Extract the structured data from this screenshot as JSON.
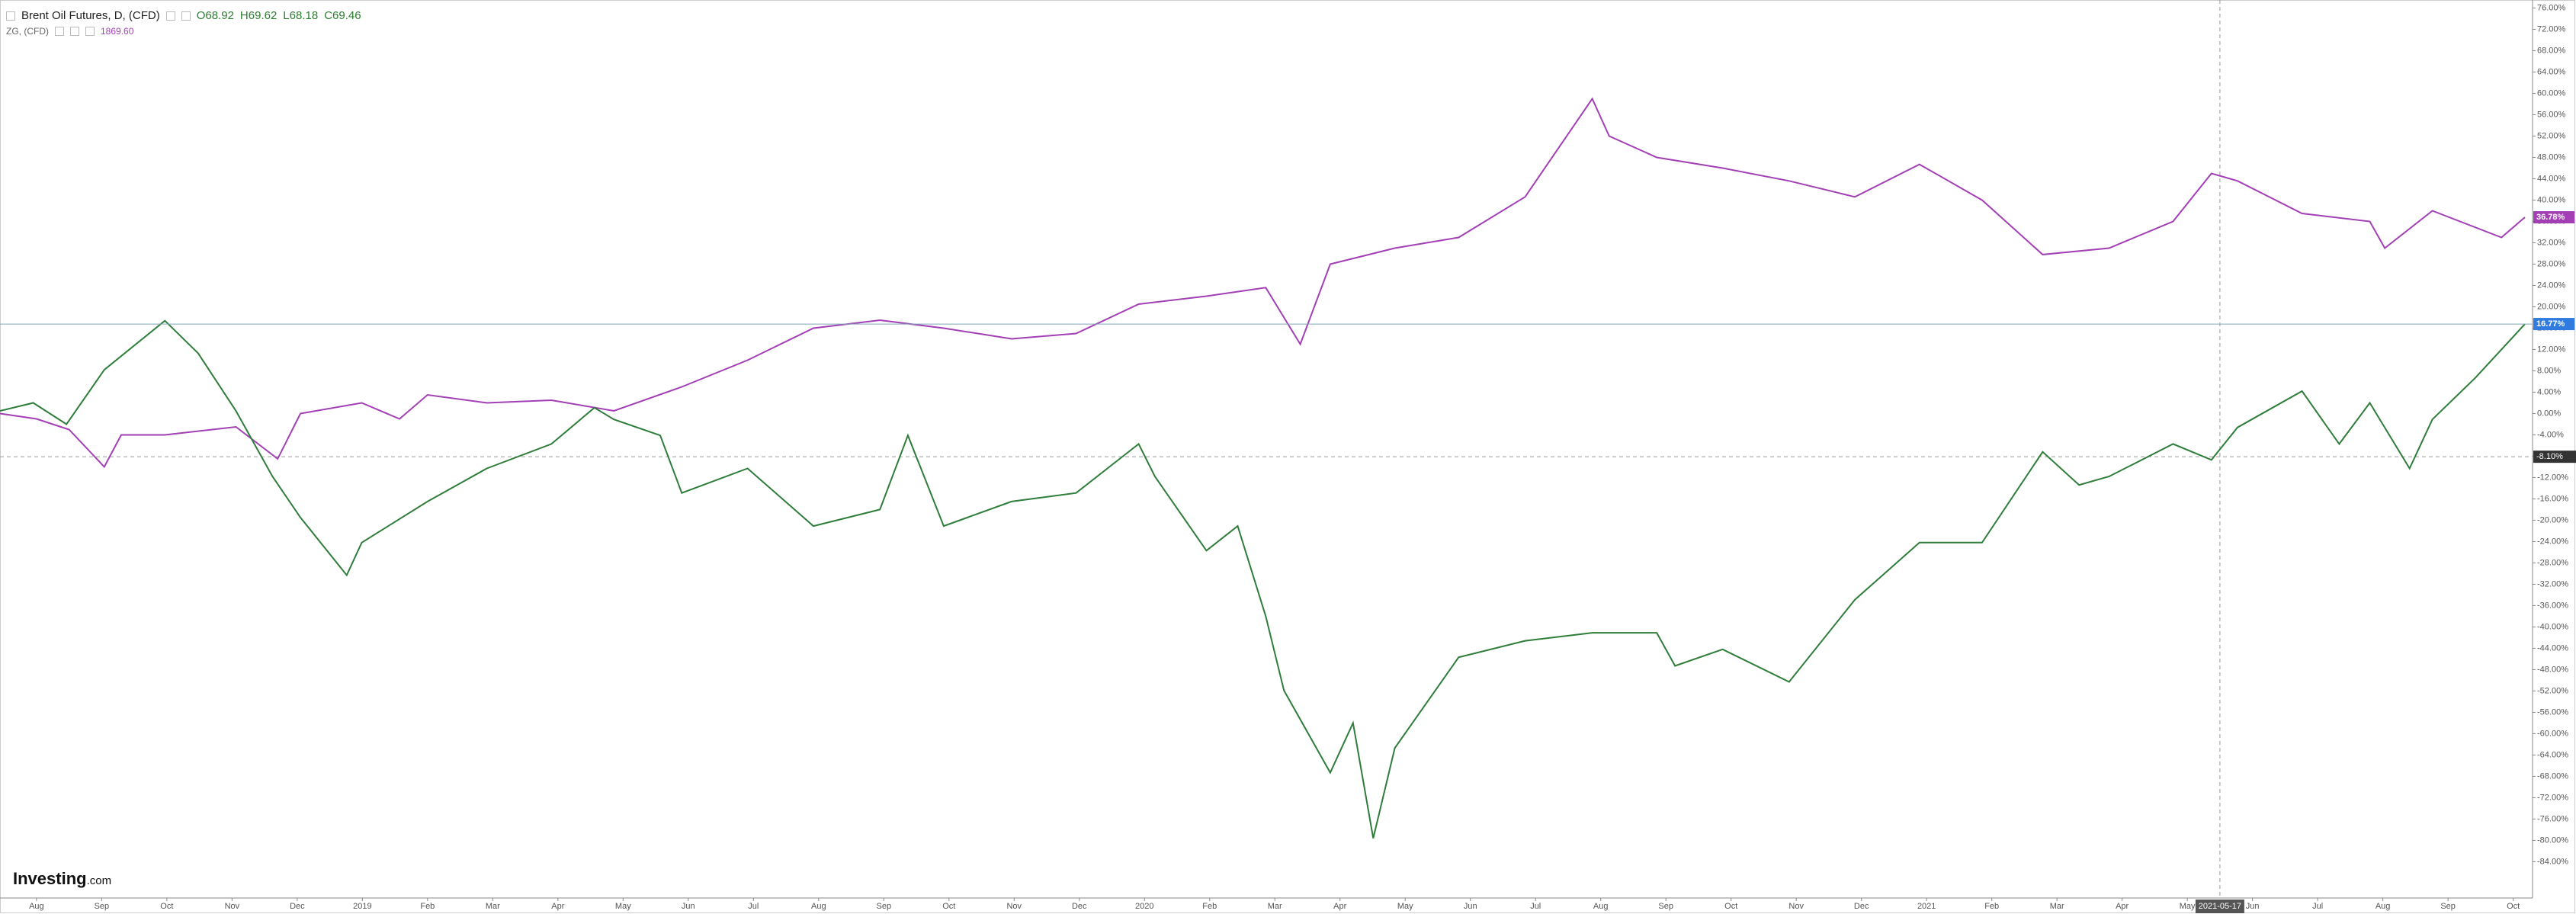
{
  "header": {
    "symbol": "Brent Oil Futures, D, (CFD)",
    "open": "O68.92",
    "high": "H69.62",
    "low": "L68.18",
    "close": "C69.46",
    "compare_symbol": "ZG, (CFD)",
    "compare_price": "1869.60"
  },
  "logo": {
    "brand": "Investing",
    "suffix": ".com"
  },
  "chart_data": {
    "type": "line",
    "xlim": [
      -0.56,
      38.25
    ],
    "ylim": [
      -90.8,
      77.5
    ],
    "xticks": [
      {
        "value": 0,
        "label": "Aug"
      },
      {
        "value": 1,
        "label": "Sep"
      },
      {
        "value": 2,
        "label": "Oct"
      },
      {
        "value": 3,
        "label": "Nov"
      },
      {
        "value": 4,
        "label": "Dec"
      },
      {
        "value": 5,
        "label": "2019"
      },
      {
        "value": 6,
        "label": "Feb"
      },
      {
        "value": 7,
        "label": "Mar"
      },
      {
        "value": 8,
        "label": "Apr"
      },
      {
        "value": 9,
        "label": "May"
      },
      {
        "value": 10,
        "label": "Jun"
      },
      {
        "value": 11,
        "label": "Jul"
      },
      {
        "value": 12,
        "label": "Aug"
      },
      {
        "value": 13,
        "label": "Sep"
      },
      {
        "value": 14,
        "label": "Oct"
      },
      {
        "value": 15,
        "label": "Nov"
      },
      {
        "value": 16,
        "label": "Dec"
      },
      {
        "value": 17,
        "label": "2020"
      },
      {
        "value": 18,
        "label": "Feb"
      },
      {
        "value": 19,
        "label": "Mar"
      },
      {
        "value": 20,
        "label": "Apr"
      },
      {
        "value": 21,
        "label": "May"
      },
      {
        "value": 22,
        "label": "Jun"
      },
      {
        "value": 23,
        "label": "Jul"
      },
      {
        "value": 24,
        "label": "Aug"
      },
      {
        "value": 25,
        "label": "Sep"
      },
      {
        "value": 26,
        "label": "Oct"
      },
      {
        "value": 27,
        "label": "Nov"
      },
      {
        "value": 28,
        "label": "Dec"
      },
      {
        "value": 29,
        "label": "2021"
      },
      {
        "value": 30,
        "label": "Feb"
      },
      {
        "value": 31,
        "label": "Mar"
      },
      {
        "value": 32,
        "label": "Apr"
      },
      {
        "value": 33,
        "label": "May"
      },
      {
        "value": 34,
        "label": "Jun"
      },
      {
        "value": 35,
        "label": "Jul"
      },
      {
        "value": 36,
        "label": "Aug"
      },
      {
        "value": 37,
        "label": "Sep"
      },
      {
        "value": 38,
        "label": "Oct"
      }
    ],
    "yticks": [
      {
        "value": 76,
        "label": "76.00%"
      },
      {
        "value": 72,
        "label": "72.00%"
      },
      {
        "value": 68,
        "label": "68.00%"
      },
      {
        "value": 64,
        "label": "64.00%"
      },
      {
        "value": 60,
        "label": "60.00%"
      },
      {
        "value": 56,
        "label": "56.00%"
      },
      {
        "value": 52,
        "label": "52.00%"
      },
      {
        "value": 48,
        "label": "48.00%"
      },
      {
        "value": 44,
        "label": "44.00%"
      },
      {
        "value": 40,
        "label": "40.00%"
      },
      {
        "value": 36,
        "label": "36.00%"
      },
      {
        "value": 32,
        "label": "32.00%"
      },
      {
        "value": 28,
        "label": "28.00%"
      },
      {
        "value": 24,
        "label": "24.00%"
      },
      {
        "value": 20,
        "label": "20.00%"
      },
      {
        "value": 16,
        "label": "16.00%"
      },
      {
        "value": 12,
        "label": "12.00%"
      },
      {
        "value": 8,
        "label": "8.00%"
      },
      {
        "value": 4,
        "label": "4.00%"
      },
      {
        "value": 0,
        "label": "0.00%"
      },
      {
        "value": -4,
        "label": "-4.00%"
      },
      {
        "value": -8,
        "label": "-8.00%"
      },
      {
        "value": -12,
        "label": "-12.00%"
      },
      {
        "value": -16,
        "label": "-16.00%"
      },
      {
        "value": -20,
        "label": "-20.00%"
      },
      {
        "value": -24,
        "label": "-24.00%"
      },
      {
        "value": -28,
        "label": "-28.00%"
      },
      {
        "value": -32,
        "label": "-32.00%"
      },
      {
        "value": -36,
        "label": "-36.00%"
      },
      {
        "value": -40,
        "label": "-40.00%"
      },
      {
        "value": -44,
        "label": "-44.00%"
      },
      {
        "value": -48,
        "label": "-48.00%"
      },
      {
        "value": -52,
        "label": "-52.00%"
      },
      {
        "value": -56,
        "label": "-56.00%"
      },
      {
        "value": -60,
        "label": "-60.00%"
      },
      {
        "value": -64,
        "label": "-64.00%"
      },
      {
        "value": -68,
        "label": "-68.00%"
      },
      {
        "value": -72,
        "label": "-72.00%"
      },
      {
        "value": -76,
        "label": "-76.00%"
      },
      {
        "value": -80,
        "label": "-80.00%"
      },
      {
        "value": -84,
        "label": "-84.00%"
      }
    ],
    "series": [
      {
        "name": "ZG, (CFD)",
        "color": "#a23fb5",
        "last_label": "36.78%",
        "x": [
          -0.56,
          0,
          0.5,
          1.04,
          1.3,
          1.97,
          3.06,
          3.7,
          4.05,
          4.99,
          5.57,
          6,
          6.91,
          7.9,
          8.86,
          9.9,
          10.91,
          11.92,
          12.94,
          13.92,
          14.96,
          15.95,
          16.91,
          17.95,
          18.86,
          19.39,
          19.85,
          20.84,
          21.82,
          22.84,
          23.87,
          24.13,
          24.86,
          25.87,
          26.89,
          27.9,
          28.89,
          29.85,
          30.78,
          31.8,
          32.78,
          33.37,
          33.77,
          34.76,
          35.8,
          36.03,
          36.76,
          37.82,
          38.18
        ],
        "values": [
          0,
          -1,
          -3,
          -10,
          -4,
          -4,
          -2.5,
          -8.5,
          0,
          2,
          -1,
          3.5,
          2,
          2.5,
          0.5,
          5,
          10,
          16,
          17.5,
          16,
          14,
          15,
          20.5,
          22,
          23.6,
          13,
          28,
          31,
          33,
          40.6,
          59,
          52,
          48,
          46,
          43.6,
          40.6,
          46.7,
          40,
          29.8,
          31,
          36,
          45,
          43.6,
          37.5,
          36,
          31,
          38,
          33,
          36.78
        ]
      },
      {
        "name": "Brent Oil Futures, D, (CFD)",
        "color": "#2f7d3a",
        "last_label": "16.77%",
        "x": [
          -0.56,
          -0.05,
          0.46,
          1.04,
          1.97,
          2.48,
          3.06,
          3.62,
          4.05,
          4.76,
          4.99,
          6,
          6.91,
          7.9,
          8.56,
          8.86,
          9.57,
          9.9,
          10.91,
          11.92,
          12.94,
          13.37,
          13.92,
          14.96,
          15.95,
          16.91,
          17.16,
          17.95,
          18.43,
          18.86,
          19.14,
          19.85,
          20.2,
          20.51,
          20.84,
          21.82,
          22.84,
          23.87,
          24.86,
          25.14,
          25.87,
          26.89,
          27.9,
          28.89,
          29.85,
          30.78,
          31.34,
          31.8,
          32.78,
          33.37,
          33.77,
          34.76,
          35.33,
          35.8,
          36.41,
          36.76,
          37.42,
          38.18
        ],
        "values": [
          0.5,
          2,
          -2,
          8.2,
          17.4,
          11.3,
          0.5,
          -11.8,
          -19.5,
          -30.3,
          -24.2,
          -16.5,
          -10.3,
          -5.7,
          1.1,
          -1.1,
          -4.1,
          -14.9,
          -10.3,
          -21.1,
          -18,
          -4.1,
          -21.1,
          -16.5,
          -14.9,
          -5.7,
          -11.8,
          -25.7,
          -21.1,
          -38,
          -51.9,
          -67.3,
          -58,
          -79.6,
          -62.7,
          -45.7,
          -42.6,
          -41.1,
          -41.1,
          -47.3,
          -44.2,
          -50.3,
          -34.9,
          -24.2,
          -24.2,
          -7.2,
          -13.4,
          -11.8,
          -5.7,
          -8.7,
          -2.6,
          4.2,
          -5.7,
          2,
          -10.3,
          -1.1,
          6.7,
          16.77
        ]
      }
    ],
    "crosshair": {
      "x": {
        "value": 33.5,
        "label": "2021-05-17"
      },
      "y": {
        "value": -8.1,
        "label": "-8.10%"
      }
    }
  }
}
